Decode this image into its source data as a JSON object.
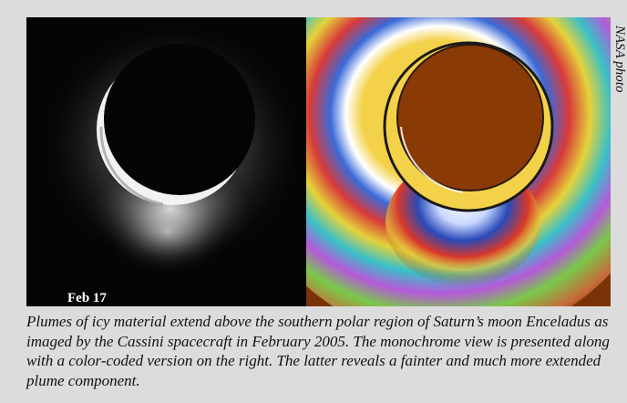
{
  "figure": {
    "left_image_label": "Feb 17",
    "credit": "NASA photo",
    "caption": "Plumes of icy material extend above the southern polar region of Saturn’s moon Enceladus as imaged by the Cassini spacecraft in February 2005. The monochrome view is presented along with a color-coded version on the right. The latter reveals a fainter and much more extended plume component."
  },
  "colors": {
    "page_background": "#dcdcdc",
    "monochrome_background": "#050505",
    "color_coded_background": "#7a3306",
    "moon_disk_color_coded": "#8a3a05",
    "crescent_yellow": "#f3d24a"
  }
}
